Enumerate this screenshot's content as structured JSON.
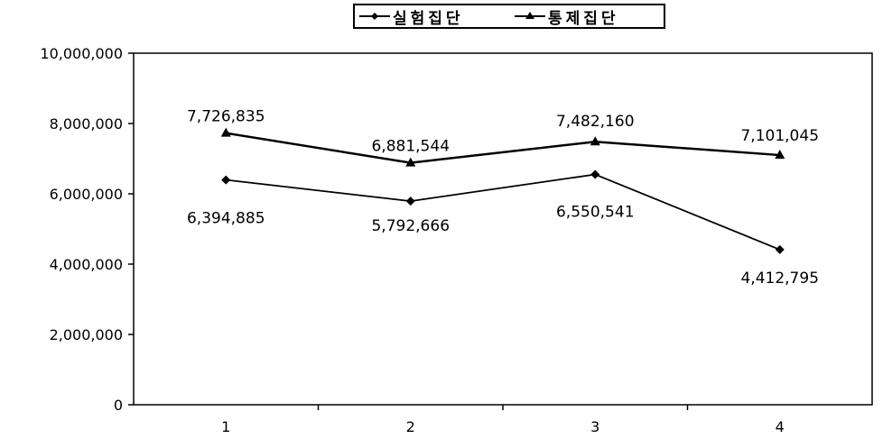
{
  "chart_data": {
    "type": "line",
    "categories": [
      "1",
      "2",
      "3",
      "4"
    ],
    "series": [
      {
        "name": "실험집단",
        "marker": "diamond",
        "values": [
          6394885,
          5792666,
          6550541,
          4412795
        ]
      },
      {
        "name": "통제집단",
        "marker": "triangle",
        "values": [
          7726835,
          6881544,
          7482160,
          7101045
        ]
      }
    ],
    "data_labels": {
      "실험집단": [
        "6,394,885",
        "5,792,666",
        "6,550,541",
        "4,412,795"
      ],
      "통제집단": [
        "7,726,835",
        "6,881,544",
        "7,482,160",
        "7,101,045"
      ]
    },
    "y_ticks": [
      "0",
      "2,000,000",
      "4,000,000",
      "6,000,000",
      "8,000,000",
      "10,000,000"
    ],
    "ylim": [
      0,
      10000000
    ],
    "title": "",
    "xlabel": "",
    "ylabel": "",
    "grid": false,
    "legend_position": "top-center",
    "colors": {
      "line": "#000000",
      "background": "#ffffff"
    }
  }
}
